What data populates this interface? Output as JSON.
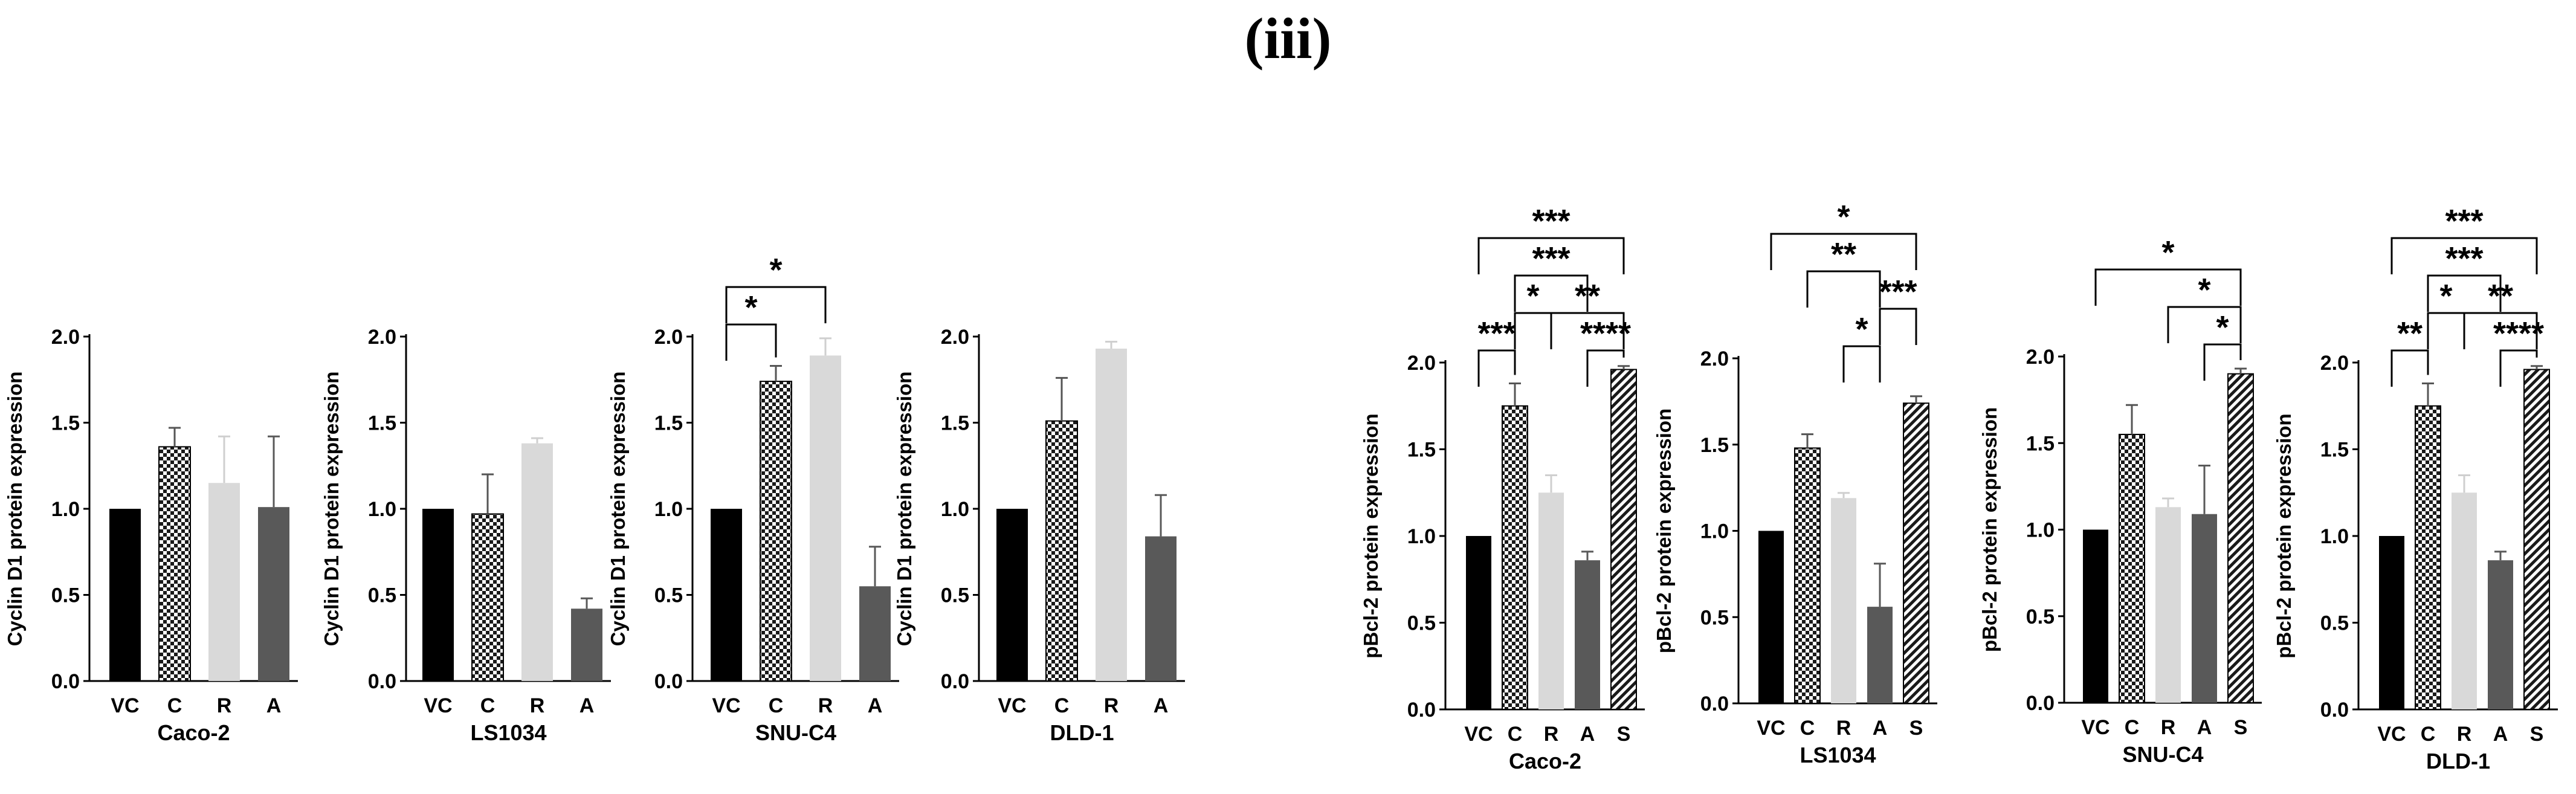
{
  "figure_title": "(iii)",
  "chart_data": [
    {
      "type": "bar",
      "title": "Caco-2",
      "xlabel": "Caco-2",
      "ylabel": "Cyclin D1 protein expression",
      "ylim": [
        0,
        2.0
      ],
      "yticks": [
        "0.0",
        "0.5",
        "1.0",
        "1.5",
        "2.0"
      ],
      "categories": [
        "VC",
        "C",
        "R",
        "A"
      ],
      "values": [
        1.0,
        1.36,
        1.15,
        1.01
      ],
      "errors": [
        0,
        0.11,
        0.27,
        0.41
      ],
      "fills": [
        "#000000",
        "checker",
        "#d9d9d9",
        "#595959"
      ],
      "comparisons": []
    },
    {
      "type": "bar",
      "title": "LS1034",
      "xlabel": "LS1034",
      "ylabel": "Cyclin D1 protein expression",
      "ylim": [
        0,
        2.0
      ],
      "yticks": [
        "0.0",
        "0.5",
        "1.0",
        "1.5",
        "2.0"
      ],
      "categories": [
        "VC",
        "C",
        "R",
        "A"
      ],
      "values": [
        1.0,
        0.97,
        1.38,
        0.42
      ],
      "errors": [
        0,
        0.23,
        0.03,
        0.06
      ],
      "fills": [
        "#000000",
        "checker",
        "#d9d9d9",
        "#595959"
      ],
      "comparisons": []
    },
    {
      "type": "bar",
      "title": "SNU-C4",
      "xlabel": "SNU-C4",
      "ylabel": "Cyclin D1 protein expression",
      "ylim": [
        0,
        2.0
      ],
      "yticks": [
        "0.0",
        "0.5",
        "1.0",
        "1.5",
        "2.0"
      ],
      "categories": [
        "VC",
        "C",
        "R",
        "A"
      ],
      "values": [
        1.0,
        1.74,
        1.89,
        0.55
      ],
      "errors": [
        0,
        0.09,
        0.1,
        0.23
      ],
      "fills": [
        "#000000",
        "checker",
        "#d9d9d9",
        "#595959"
      ],
      "comparisons": [
        {
          "from": 0,
          "to": 2,
          "label": "*",
          "level": 1
        },
        {
          "from": 0,
          "to": 1,
          "label": "*",
          "level": 0
        }
      ]
    },
    {
      "type": "bar",
      "title": "DLD-1",
      "xlabel": "DLD-1",
      "ylabel": "Cyclin D1 protein expression",
      "ylim": [
        0,
        2.0
      ],
      "yticks": [
        "0.0",
        "0.5",
        "1.0",
        "1.5",
        "2.0"
      ],
      "categories": [
        "VC",
        "C",
        "R",
        "A"
      ],
      "values": [
        1.0,
        1.51,
        1.93,
        0.84
      ],
      "errors": [
        0,
        0.25,
        0.04,
        0.24
      ],
      "fills": [
        "#000000",
        "checker",
        "#d9d9d9",
        "#595959"
      ],
      "comparisons": []
    },
    {
      "type": "bar",
      "title": "Caco-2",
      "xlabel": "Caco-2",
      "ylabel": "pBcl-2 protein expression",
      "ylim": [
        0,
        2.0
      ],
      "yticks": [
        "0.0",
        "0.5",
        "1.0",
        "1.5",
        "2.0"
      ],
      "categories": [
        "VC",
        "C",
        "R",
        "A",
        "S"
      ],
      "values": [
        1.0,
        1.75,
        1.25,
        0.86,
        1.96
      ],
      "errors": [
        0,
        0.13,
        0.1,
        0.05,
        0.02
      ],
      "fills": [
        "#000000",
        "checker",
        "#d9d9d9",
        "#595959",
        "stripe"
      ],
      "comparisons": [
        {
          "from": 0,
          "to": 4,
          "label": "***",
          "level": 3
        },
        {
          "from": 1,
          "to": 3,
          "label": "***",
          "level": 2
        },
        {
          "from": 1,
          "to": 2,
          "label": "*",
          "level": 1
        },
        {
          "from": 2,
          "to": 4,
          "label": "**",
          "level": 1
        },
        {
          "from": 0,
          "to": 1,
          "label": "***",
          "level": 0
        },
        {
          "from": 3,
          "to": 4,
          "label": "****",
          "level": 0
        }
      ]
    },
    {
      "type": "bar",
      "title": "LS1034",
      "xlabel": "LS1034",
      "ylabel": "pBcl-2 protein expression",
      "ylim": [
        0,
        2.0
      ],
      "yticks": [
        "0.0",
        "0.5",
        "1.0",
        "1.5",
        "2.0"
      ],
      "categories": [
        "VC",
        "C",
        "R",
        "A",
        "S"
      ],
      "values": [
        1.0,
        1.48,
        1.19,
        0.56,
        1.74
      ],
      "errors": [
        0,
        0.08,
        0.03,
        0.25,
        0.04
      ],
      "fills": [
        "#000000",
        "checker",
        "#d9d9d9",
        "#595959",
        "stripe"
      ],
      "comparisons": [
        {
          "from": 0,
          "to": 4,
          "label": "*",
          "level": 3
        },
        {
          "from": 1,
          "to": 3,
          "label": "**",
          "level": 2
        },
        {
          "from": 3,
          "to": 4,
          "label": "***",
          "level": 1
        },
        {
          "from": 2,
          "to": 3,
          "label": "*",
          "level": 0
        }
      ]
    },
    {
      "type": "bar",
      "title": "SNU-C4",
      "xlabel": "SNU-C4",
      "ylabel": "pBcl-2 protein expression",
      "ylim": [
        0,
        2.0
      ],
      "yticks": [
        "0.0",
        "0.5",
        "1.0",
        "1.5",
        "2.0"
      ],
      "categories": [
        "VC",
        "C",
        "R",
        "A",
        "S"
      ],
      "values": [
        1.0,
        1.55,
        1.13,
        1.09,
        1.9
      ],
      "errors": [
        0,
        0.17,
        0.05,
        0.28,
        0.03
      ],
      "fills": [
        "#000000",
        "checker",
        "#d9d9d9",
        "#595959",
        "stripe"
      ],
      "comparisons": [
        {
          "from": 0,
          "to": 4,
          "label": "*",
          "level": 2
        },
        {
          "from": 2,
          "to": 4,
          "label": "*",
          "level": 1
        },
        {
          "from": 3,
          "to": 4,
          "label": "*",
          "level": 0
        }
      ]
    },
    {
      "type": "bar",
      "title": "DLD-1",
      "xlabel": "DLD-1",
      "ylabel": "pBcl-2 protein expression",
      "ylim": [
        0,
        2.0
      ],
      "yticks": [
        "0.0",
        "0.5",
        "1.0",
        "1.5",
        "2.0"
      ],
      "categories": [
        "VC",
        "C",
        "R",
        "A",
        "S"
      ],
      "values": [
        1.0,
        1.75,
        1.25,
        0.86,
        1.96
      ],
      "errors": [
        0,
        0.13,
        0.1,
        0.05,
        0.02
      ],
      "fills": [
        "#000000",
        "checker",
        "#d9d9d9",
        "#595959",
        "stripe"
      ],
      "comparisons": [
        {
          "from": 0,
          "to": 4,
          "label": "***",
          "level": 3
        },
        {
          "from": 1,
          "to": 3,
          "label": "***",
          "level": 2
        },
        {
          "from": 1,
          "to": 2,
          "label": "*",
          "level": 1
        },
        {
          "from": 2,
          "to": 4,
          "label": "**",
          "level": 1
        },
        {
          "from": 0,
          "to": 1,
          "label": "**",
          "level": 0
        },
        {
          "from": 3,
          "to": 4,
          "label": "****",
          "level": 0
        }
      ]
    }
  ]
}
